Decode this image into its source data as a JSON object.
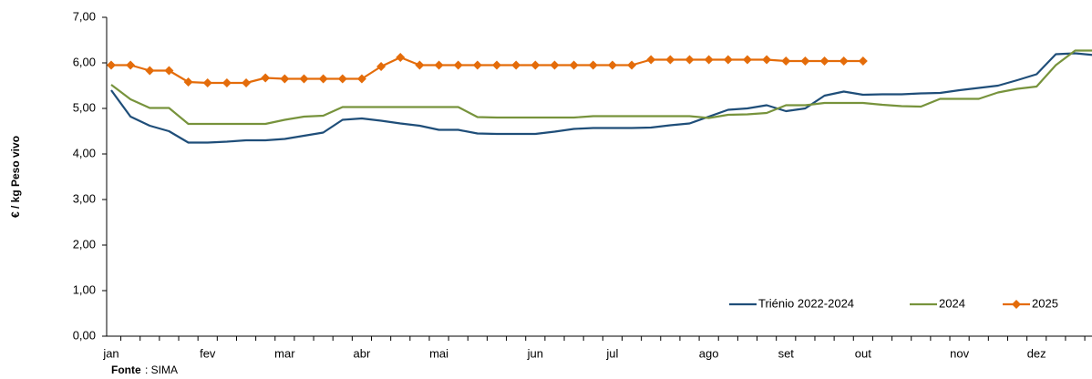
{
  "chart_data": {
    "type": "line",
    "y_label": "€ / kg Peso vivo",
    "source_label": "Fonte",
    "source": ": SIMA",
    "categories": [
      "jan",
      null,
      null,
      null,
      null,
      "fev",
      null,
      null,
      null,
      "mar",
      null,
      null,
      null,
      "abr",
      null,
      null,
      null,
      "mai",
      null,
      null,
      null,
      null,
      "jun",
      null,
      null,
      null,
      "jul",
      null,
      null,
      null,
      null,
      "ago",
      null,
      null,
      null,
      "set",
      null,
      null,
      null,
      "out",
      null,
      null,
      null,
      null,
      "nov",
      null,
      null,
      null,
      "dez",
      null,
      null,
      null
    ],
    "ylim": [
      0,
      7
    ],
    "yticks": [
      {
        "value": 0,
        "label": "0,00"
      },
      {
        "value": 1,
        "label": "1,00"
      },
      {
        "value": 2,
        "label": "2,00"
      },
      {
        "value": 3,
        "label": "3,00"
      },
      {
        "value": 4,
        "label": "4,00"
      },
      {
        "value": 5,
        "label": "5,00"
      },
      {
        "value": 6,
        "label": "6,00"
      },
      {
        "value": 7,
        "label": "7,00"
      }
    ],
    "grid": false,
    "legend": "bottom-right",
    "series": [
      {
        "name": "Triénio 2022-2024",
        "color": "#1f4e79",
        "marker": "none",
        "values": [
          5.4,
          4.82,
          4.62,
          4.5,
          4.25,
          4.25,
          4.27,
          4.3,
          4.3,
          4.33,
          4.4,
          4.47,
          4.75,
          4.78,
          4.73,
          4.67,
          4.62,
          4.53,
          4.53,
          4.45,
          4.44,
          4.44,
          4.44,
          4.49,
          4.55,
          4.57,
          4.57,
          4.57,
          4.58,
          4.63,
          4.67,
          4.82,
          4.97,
          5.0,
          5.07,
          4.94,
          5.0,
          5.28,
          5.37,
          5.3,
          5.31,
          5.31,
          5.33,
          5.34,
          5.4,
          5.45,
          5.5,
          5.62,
          5.75,
          6.19,
          6.21,
          6.17
        ]
      },
      {
        "name": "2024",
        "color": "#77933c",
        "marker": "none",
        "values": [
          5.52,
          5.2,
          5.01,
          5.01,
          4.66,
          4.66,
          4.66,
          4.66,
          4.66,
          4.75,
          4.82,
          4.84,
          5.03,
          5.03,
          5.03,
          5.03,
          5.03,
          5.03,
          5.03,
          4.81,
          4.8,
          4.8,
          4.8,
          4.8,
          4.8,
          4.83,
          4.83,
          4.83,
          4.83,
          4.83,
          4.83,
          4.79,
          4.86,
          4.87,
          4.9,
          5.07,
          5.07,
          5.12,
          5.12,
          5.12,
          5.08,
          5.05,
          5.04,
          5.21,
          5.21,
          5.21,
          5.35,
          5.43,
          5.48,
          5.95,
          6.27,
          6.27
        ]
      },
      {
        "name": "2025",
        "color": "#e46c0a",
        "marker": "diamond",
        "values": [
          5.95,
          5.95,
          5.83,
          5.83,
          5.58,
          5.56,
          5.56,
          5.56,
          5.67,
          5.65,
          5.65,
          5.65,
          5.65,
          5.65,
          5.92,
          6.12,
          5.95,
          5.95,
          5.95,
          5.95,
          5.95,
          5.95,
          5.95,
          5.95,
          5.95,
          5.95,
          5.95,
          5.95,
          6.07,
          6.07,
          6.07,
          6.07,
          6.07,
          6.07,
          6.07,
          6.04,
          6.04,
          6.04,
          6.04,
          6.04,
          null,
          null,
          null,
          null,
          null,
          null,
          null,
          null,
          null,
          null,
          null,
          null
        ]
      }
    ]
  }
}
